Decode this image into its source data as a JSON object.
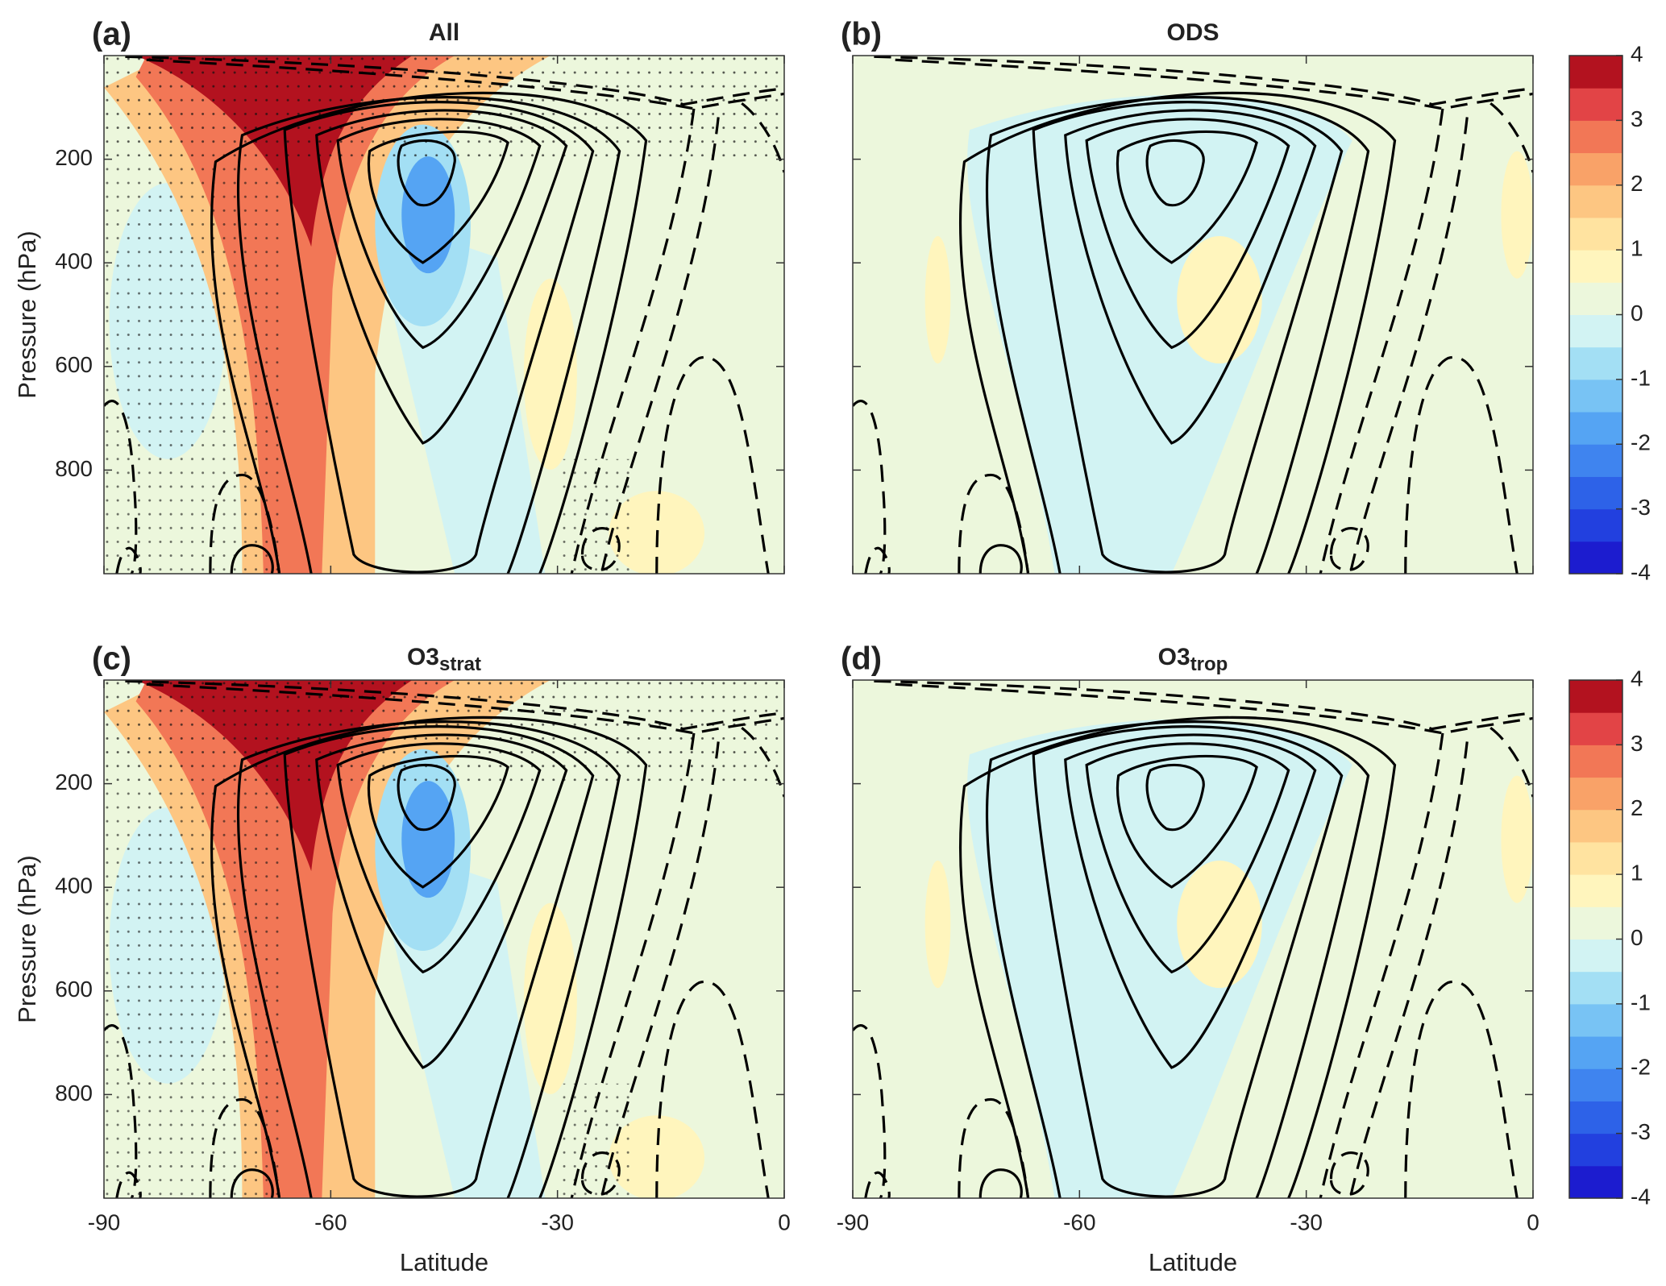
{
  "chart_data": [
    {
      "type": "contour",
      "panel_label": "(a)",
      "title": "All",
      "ylabel": "Pressure (hPa)",
      "xlim": [
        -90,
        0
      ],
      "ylim": [
        1000,
        0
      ],
      "xticks": [
        -90,
        -60,
        -30,
        0
      ],
      "yticks": [
        200,
        400,
        600,
        800
      ],
      "xtick_labels": false,
      "ytick_labels": true,
      "field": "strong",
      "stippling": true
    },
    {
      "type": "contour",
      "panel_label": "(b)",
      "title": "ODS",
      "xlim": [
        -90,
        0
      ],
      "ylim": [
        1000,
        0
      ],
      "xticks": [
        -90,
        -60,
        -30,
        0
      ],
      "yticks": [
        200,
        400,
        600,
        800
      ],
      "xtick_labels": false,
      "ytick_labels": false,
      "field": "weak",
      "stippling": false
    },
    {
      "type": "contour",
      "panel_label": "(c)",
      "title": "O3",
      "title_subscript": "strat",
      "ylabel": "Pressure (hPa)",
      "xlabel": "Latitude",
      "xlim": [
        -90,
        0
      ],
      "ylim": [
        1000,
        0
      ],
      "xticks": [
        -90,
        -60,
        -30,
        0
      ],
      "yticks": [
        200,
        400,
        600,
        800
      ],
      "xtick_labels": true,
      "ytick_labels": true,
      "field": "strong",
      "stippling": true
    },
    {
      "type": "contour",
      "panel_label": "(d)",
      "title": "O3",
      "title_subscript": "trop",
      "xlabel": "Latitude",
      "xlim": [
        -90,
        0
      ],
      "ylim": [
        1000,
        0
      ],
      "xticks": [
        -90,
        -60,
        -30,
        0
      ],
      "yticks": [
        200,
        400,
        600,
        800
      ],
      "xtick_labels": true,
      "ytick_labels": false,
      "field": "weak",
      "stippling": false
    },
    {
      "type": "colorbar",
      "clim": [
        -4,
        4
      ],
      "ticks": [
        -4,
        -3,
        -2,
        -1,
        0,
        1,
        2,
        3,
        4
      ],
      "colors": [
        "#1c1ccf",
        "#2240df",
        "#2d62e8",
        "#3f84ef",
        "#55a4f3",
        "#78c3f4",
        "#a3dff4",
        "#d2f3f3",
        "#ecf7dc",
        "#fff5bd",
        "#ffe3a0",
        "#fdc682",
        "#f9a268",
        "#f27756",
        "#e24446",
        "#b3121f"
      ]
    },
    {
      "type": "colorbar",
      "clim": [
        -4,
        4
      ],
      "ticks": [
        -4,
        -3,
        -2,
        -1,
        0,
        1,
        2,
        3,
        4
      ],
      "colors": [
        "#1c1ccf",
        "#2240df",
        "#2d62e8",
        "#3f84ef",
        "#55a4f3",
        "#78c3f4",
        "#a3dff4",
        "#d2f3f3",
        "#ecf7dc",
        "#fff5bd",
        "#ffe3a0",
        "#fdc682",
        "#f9a268",
        "#f27756",
        "#e24446",
        "#b3121f"
      ]
    }
  ]
}
